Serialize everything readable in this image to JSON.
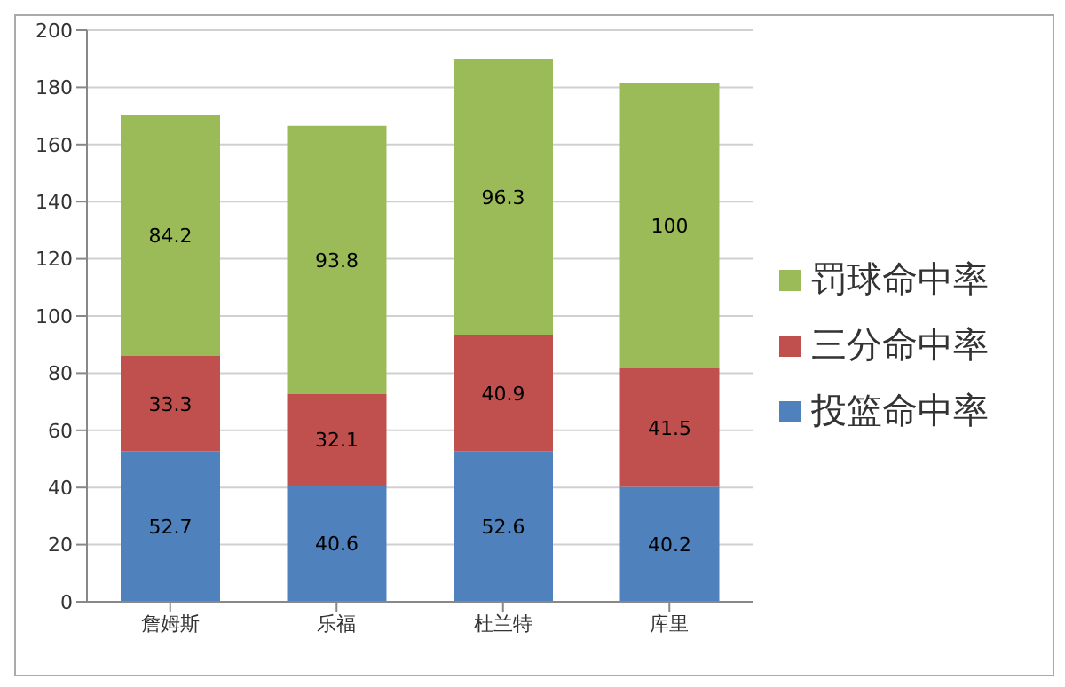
{
  "chart_data": {
    "type": "bar",
    "stacked": true,
    "categories": [
      "詹姆斯",
      "乐福",
      "杜兰特",
      "库里"
    ],
    "series": [
      {
        "name": "投篮命中率",
        "color": "#4f81bd",
        "values": [
          52.7,
          40.6,
          52.6,
          40.2
        ]
      },
      {
        "name": "三分命中率",
        "color": "#c0504d",
        "values": [
          33.3,
          32.1,
          40.9,
          41.5
        ]
      },
      {
        "name": "罚球命中率",
        "color": "#9bbb59",
        "values": [
          84.2,
          93.8,
          96.3,
          100
        ]
      }
    ],
    "ylim": [
      0,
      200
    ],
    "yticks": [
      0,
      20,
      40,
      60,
      80,
      100,
      120,
      140,
      160,
      180,
      200
    ],
    "grid": "y",
    "legend": "right",
    "data_labels": true
  }
}
